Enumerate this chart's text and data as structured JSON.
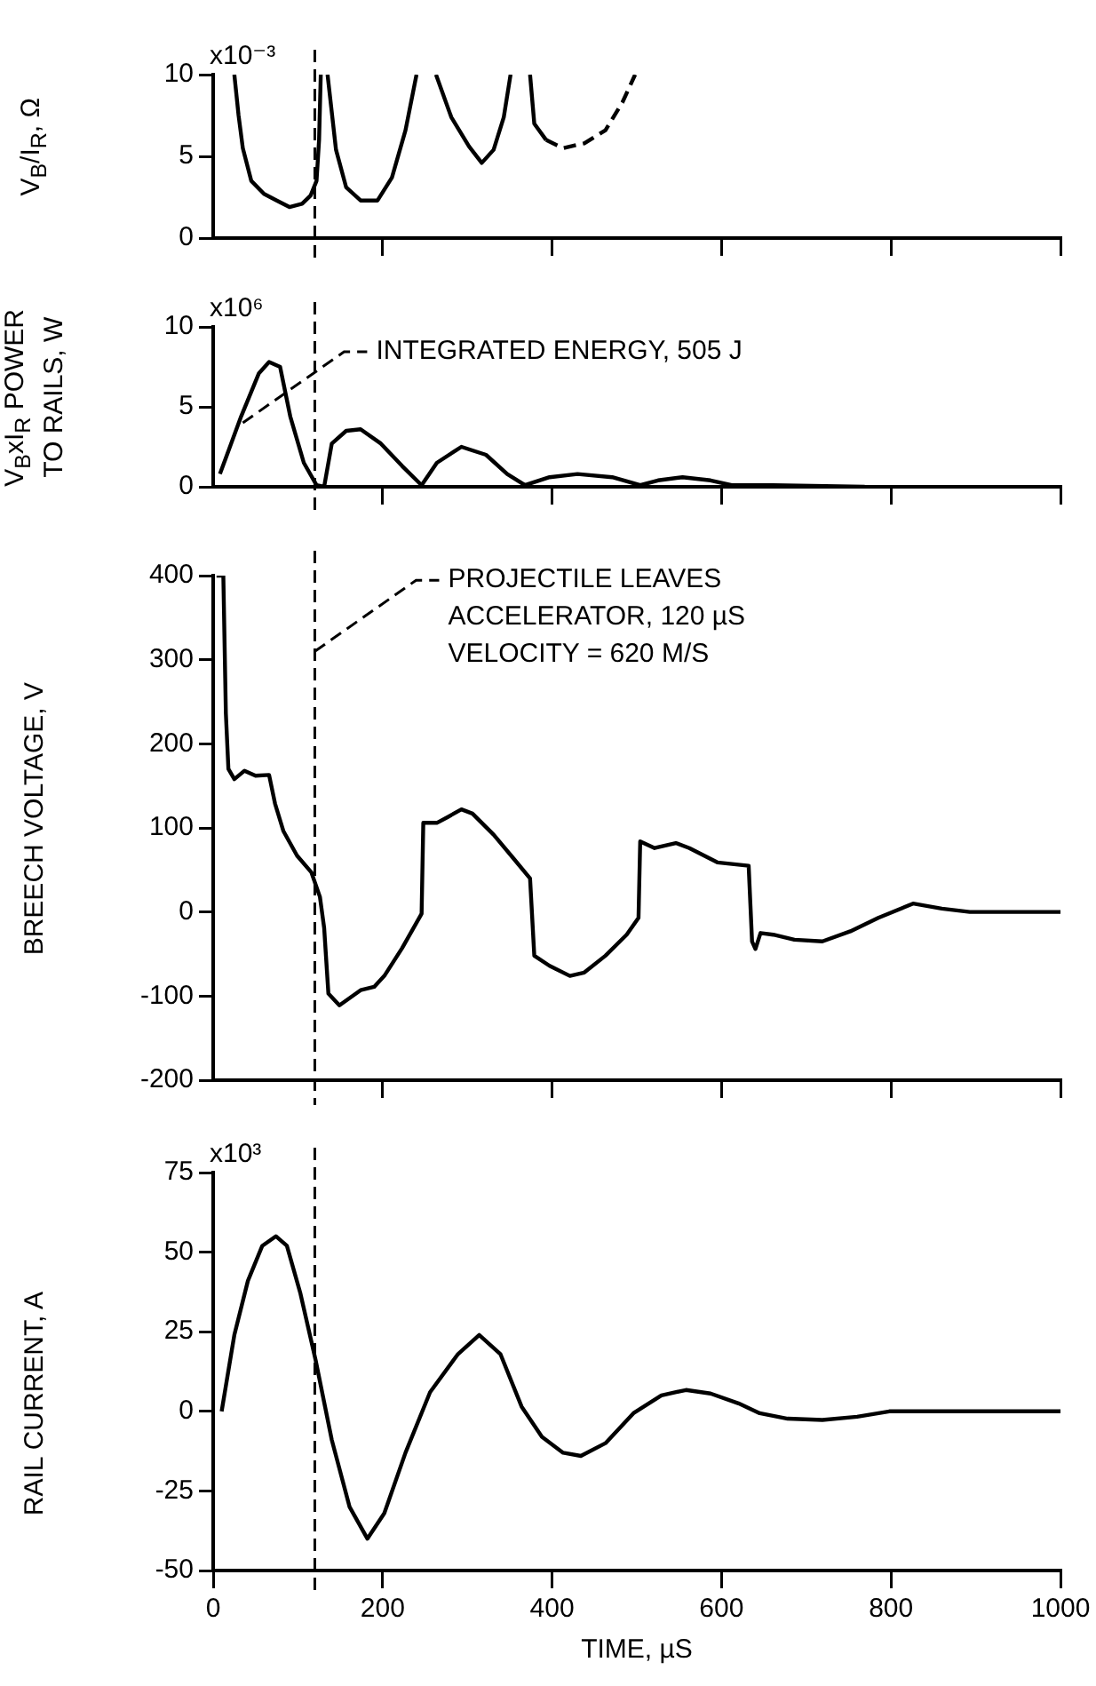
{
  "chart_data": [
    {
      "type": "line",
      "ylabel": "V$_{B}$/I$_{R}$, Ω",
      "xlim": [
        0,
        1000
      ],
      "xticks": [
        {
          "value": 200,
          "label": null
        },
        {
          "value": 400,
          "label": null
        },
        {
          "value": 600,
          "label": null
        },
        {
          "value": 800,
          "label": null
        },
        {
          "value": 1000,
          "label": null
        }
      ],
      "ylim": [
        0,
        10
      ],
      "yticks": [
        0,
        5,
        10
      ],
      "annotations": [
        "x10⁻³"
      ],
      "tick_labels": "y",
      "grid": false,
      "series": [
        {
          "color": "#000000",
          "x": [
            25,
            30,
            35,
            45,
            60,
            75,
            90,
            105,
            115,
            122,
            125,
            127,
            131,
            135,
            145,
            157,
            174,
            194,
            211,
            227,
            240,
            252,
            263,
            281,
            302,
            317,
            331,
            343,
            351,
            362,
            374,
            379,
            393
          ],
          "values": [
            10,
            7.5,
            5.5,
            3.5,
            2.7,
            2.3,
            1.9,
            2.1,
            2.6,
            3.5,
            6,
            10,
            null,
            10,
            5.4,
            3.1,
            2.3,
            2.3,
            3.7,
            6.6,
            10,
            null,
            10,
            7.4,
            5.6,
            4.6,
            5.4,
            7.4,
            10,
            null,
            10,
            7,
            6
          ]
        },
        {
          "color": "#000000",
          "line_style": "dashed",
          "x": [
            393,
            413,
            438,
            463,
            483,
            498
          ],
          "values": [
            6,
            5.5,
            5.8,
            6.6,
            8.3,
            10
          ]
        }
      ],
      "ref_lines": [
        {
          "axis": "x",
          "value": 120,
          "color": "#000000",
          "line_style": "dashed"
        }
      ]
    },
    {
      "type": "line",
      "ylabel": "V$_{B}$xI$_{R}$ POWER\nTO RAILS, W",
      "xlim": [
        0,
        1000
      ],
      "xticks": [
        {
          "value": 200,
          "label": null
        },
        {
          "value": 400,
          "label": null
        },
        {
          "value": 600,
          "label": null
        },
        {
          "value": 800,
          "label": null
        },
        {
          "value": 1000,
          "label": null
        }
      ],
      "ylim": [
        0,
        10
      ],
      "yticks": [
        0,
        5,
        10
      ],
      "tick_labels": "y",
      "grid": false,
      "series": [
        {
          "color": "#000000",
          "x": [
            8,
            33,
            54,
            66,
            79,
            91,
            107,
            122,
            131,
            140,
            157,
            174,
            198,
            223,
            246,
            264,
            293,
            322,
            347,
            368,
            397,
            430,
            471,
            504,
            525,
            554,
            587,
            612,
            661,
            769
          ],
          "values": [
            0.8,
            4.4,
            7.1,
            7.8,
            7.5,
            4.4,
            1.5,
            0.1,
            0,
            2.7,
            3.5,
            3.6,
            2.7,
            1.3,
            0.1,
            1.5,
            2.5,
            2,
            0.8,
            0.1,
            0.6,
            0.8,
            0.6,
            0.1,
            0.4,
            0.6,
            0.4,
            0.1,
            0.1,
            0
          ]
        }
      ],
      "ref_lines": [
        {
          "axis": "x",
          "value": 120,
          "color": "#000000",
          "line_style": "dashed"
        }
      ],
      "annotations": [
        "x10⁶",
        {
          "text": "INTEGRATED ENERGY, 505 J",
          "x": 35,
          "y": 4
        }
      ]
    },
    {
      "type": "line",
      "ylabel": "BREECH VOLTAGE, V",
      "xlim": [
        0,
        1000
      ],
      "xticks": [
        {
          "value": 200,
          "label": null
        },
        {
          "value": 400,
          "label": null
        },
        {
          "value": 600,
          "label": null
        },
        {
          "value": 800,
          "label": null
        },
        {
          "value": 1000,
          "label": null
        }
      ],
      "ylim": [
        -200,
        400
      ],
      "yticks": [
        -200,
        -100,
        0,
        100,
        200,
        300,
        400
      ],
      "tick_labels": "y",
      "grid": false,
      "series": [
        {
          "color": "#000000",
          "x": [
            4,
            12,
            15,
            18,
            25,
            37,
            50,
            66,
            73,
            83,
            99,
            116,
            126,
            131,
            136,
            149,
            174,
            190,
            202,
            223,
            246,
            248,
            264,
            277,
            293,
            306,
            331,
            355,
            374,
            379,
            397,
            421,
            438,
            463,
            488,
            502,
            504,
            521,
            546,
            562,
            595,
            632,
            636,
            640,
            646,
            661,
            686,
            719,
            752,
            785,
            826,
            860,
            893,
            1000
          ],
          "values": [
            400,
            400,
            236,
            170,
            158,
            168,
            162,
            163,
            129,
            96,
            67,
            47,
            18,
            -19,
            -97,
            -111,
            -93,
            -89,
            -76,
            -43,
            -2,
            106,
            106,
            113,
            122,
            117,
            92,
            63,
            40,
            -52,
            -64,
            -76,
            -72,
            -52,
            -27,
            -7,
            84,
            76,
            82,
            76,
            59,
            55,
            -35,
            -44,
            -25,
            -27,
            -33,
            -35,
            -23,
            -7,
            10,
            4,
            0,
            0
          ]
        }
      ],
      "ref_lines": [
        {
          "axis": "x",
          "value": 120,
          "color": "#000000",
          "line_style": "dashed"
        }
      ],
      "annotations": [
        {
          "text": "PROJECTILE LEAVES\nACCELERATOR, 120 µS\nVELOCITY = 620 M/S",
          "x": 120,
          "y": 310
        }
      ]
    },
    {
      "type": "line",
      "ylabel": "RAIL CURRENT, A",
      "xlabel": "TIME, µS",
      "xlim": [
        0,
        1000
      ],
      "xticks": [
        0,
        200,
        400,
        600,
        800,
        1000
      ],
      "ylim": [
        -50,
        75
      ],
      "yticks": [
        -50,
        -25,
        0,
        25,
        50,
        75
      ],
      "annotations": [
        "x10³"
      ],
      "grid": false,
      "series": [
        {
          "color": "#000000",
          "x": [
            10,
            25,
            41,
            58,
            74,
            87,
            103,
            121,
            140,
            161,
            182,
            202,
            227,
            256,
            289,
            314,
            339,
            364,
            388,
            413,
            434,
            463,
            496,
            529,
            558,
            587,
            620,
            645,
            678,
            719,
            760,
            798,
            1000
          ],
          "values": [
            0,
            24,
            41,
            52,
            55,
            52,
            37,
            16,
            -9,
            -30,
            -40,
            -32,
            -13,
            6,
            18,
            24,
            18,
            1.5,
            -8,
            -13,
            -14,
            -10,
            -0.6,
            5,
            6.7,
            5.6,
            2.5,
            -0.6,
            -2.3,
            -2.7,
            -1.7,
            0,
            0
          ]
        }
      ],
      "ref_lines": [
        {
          "axis": "x",
          "value": 120,
          "color": "#000000",
          "line_style": "dashed"
        }
      ]
    }
  ]
}
